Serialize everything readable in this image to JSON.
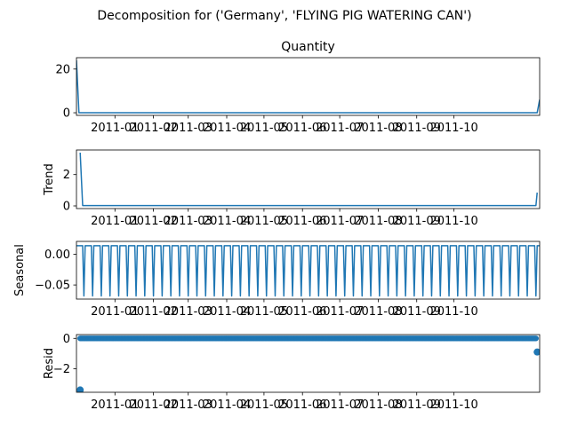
{
  "chart_data": {
    "type": "line",
    "suptitle": "Decomposition for ('Germany', 'FLYING PIG WATERING CAN')",
    "x_date_range": [
      "2010-12-01",
      "2011-12-09"
    ],
    "x_ticks": [
      "2011-01",
      "2011-02",
      "2011-03",
      "2011-04",
      "2011-05",
      "2011-06",
      "2011-07",
      "2011-08",
      "2011-09",
      "2011-10"
    ],
    "colors": {
      "series": "#1f77b4",
      "axes": "#000000"
    },
    "panels": [
      {
        "id": "observed",
        "title": "Quantity",
        "ylabel": "",
        "ylim": [
          -1.2,
          25.2
        ],
        "yticks": [
          0,
          20
        ],
        "style": "line",
        "points": [
          [
            "2010-12-01",
            24
          ],
          [
            "2010-12-03",
            0
          ],
          [
            "2011-12-07",
            0
          ],
          [
            "2011-12-09",
            6
          ]
        ]
      },
      {
        "id": "trend",
        "title": "",
        "ylabel": "Trend",
        "ylim": [
          -0.17,
          3.57
        ],
        "yticks": [
          0,
          2
        ],
        "style": "line",
        "points": [
          [
            "2010-12-04",
            3.4
          ],
          [
            "2010-12-06",
            0.02
          ],
          [
            "2011-12-06",
            0.02
          ],
          [
            "2011-12-07",
            0.85
          ]
        ]
      },
      {
        "id": "seasonal",
        "title": "",
        "ylabel": "Seasonal",
        "ylim": [
          -0.073,
          0.021
        ],
        "yticks": [
          0.0,
          -0.05
        ],
        "style": "seasonal-line",
        "period_days": 7,
        "cycle_values": [
          0.014,
          0.014,
          0.014,
          0.014,
          0.014,
          0.014,
          -0.068
        ]
      },
      {
        "id": "resid",
        "title": "",
        "ylabel": "Resid",
        "ylim": [
          -3.55,
          0.25
        ],
        "yticks": [
          0,
          -2
        ],
        "style": "scatter",
        "baseline_value": 0.0,
        "baseline_range": [
          "2010-12-04",
          "2011-12-06"
        ],
        "outliers": [
          [
            "2010-12-04",
            -3.4
          ],
          [
            "2011-12-07",
            -0.9
          ]
        ]
      }
    ]
  }
}
